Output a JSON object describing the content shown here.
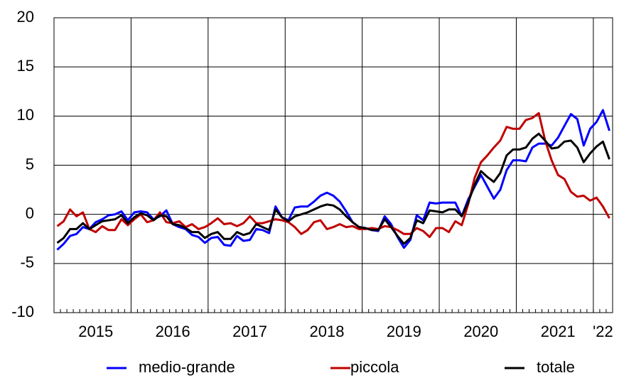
{
  "chart_data": {
    "type": "line",
    "categories": [
      null,
      null,
      null,
      null,
      null,
      null,
      "2015",
      null,
      null,
      null,
      null,
      null,
      null,
      null,
      null,
      null,
      null,
      null,
      "2016",
      null,
      null,
      null,
      null,
      null,
      null,
      null,
      null,
      null,
      null,
      null,
      "2017",
      null,
      null,
      null,
      null,
      null,
      null,
      null,
      null,
      null,
      null,
      null,
      "2018",
      null,
      null,
      null,
      null,
      null,
      null,
      null,
      null,
      null,
      null,
      null,
      "2019",
      null,
      null,
      null,
      null,
      null,
      null,
      null,
      null,
      null,
      null,
      null,
      "2020",
      null,
      null,
      null,
      null,
      null,
      null,
      null,
      null,
      null,
      null,
      null,
      "2021",
      null,
      null,
      null,
      null,
      null,
      null,
      "'22",
      null
    ],
    "series": [
      {
        "name": "medio-grande",
        "color": "#0000ff",
        "values": [
          -3.6,
          -3.0,
          -2.2,
          -2.0,
          -1.3,
          -1.5,
          -0.8,
          -0.5,
          -0.1,
          0.0,
          0.3,
          -0.6,
          0.2,
          0.3,
          0.2,
          -0.5,
          -0.2,
          0.4,
          -1.0,
          -1.3,
          -1.5,
          -2.1,
          -2.3,
          -2.9,
          -2.4,
          -2.3,
          -3.1,
          -3.2,
          -2.2,
          -2.7,
          -2.6,
          -1.5,
          -1.6,
          -1.9,
          0.8,
          -0.3,
          -0.6,
          0.7,
          0.8,
          0.8,
          1.3,
          1.9,
          2.2,
          1.9,
          1.3,
          0.3,
          -0.8,
          -1.3,
          -1.4,
          -1.6,
          -1.7,
          -0.2,
          -1.0,
          -2.3,
          -3.4,
          -2.6,
          -0.1,
          -0.6,
          1.2,
          1.1,
          1.2,
          1.2,
          1.2,
          -0.2,
          1.5,
          2.8,
          4.0,
          2.8,
          1.6,
          2.5,
          4.5,
          5.5,
          5.5,
          5.4,
          6.8,
          7.2,
          7.2,
          7.0,
          7.8,
          9.0,
          10.2,
          9.7,
          7.0,
          8.7,
          9.4,
          10.6,
          8.5
        ]
      },
      {
        "name": "piccola",
        "color": "#c00000",
        "values": [
          -1.2,
          -0.7,
          0.5,
          -0.2,
          0.2,
          -1.5,
          -1.8,
          -1.2,
          -1.6,
          -1.6,
          -0.5,
          -1.1,
          -0.5,
          0.0,
          -0.8,
          -0.6,
          0.2,
          -0.8,
          -0.9,
          -0.7,
          -1.3,
          -1.0,
          -1.5,
          -1.3,
          -0.9,
          -0.4,
          -1.0,
          -0.9,
          -1.2,
          -0.9,
          -0.2,
          -0.9,
          -0.9,
          -0.7,
          -0.5,
          -0.6,
          -0.8,
          -1.3,
          -2.0,
          -1.6,
          -0.8,
          -0.6,
          -1.5,
          -1.3,
          -1.0,
          -1.3,
          -1.2,
          -1.5,
          -1.5,
          -1.4,
          -1.5,
          -1.2,
          -1.3,
          -1.6,
          -2.0,
          -2.0,
          -1.4,
          -1.7,
          -2.3,
          -1.4,
          -1.4,
          -1.8,
          -0.7,
          -1.1,
          1.0,
          3.7,
          5.3,
          6.0,
          6.8,
          7.5,
          8.9,
          8.7,
          8.7,
          9.6,
          9.8,
          10.3,
          7.5,
          5.5,
          4.0,
          3.6,
          2.3,
          1.8,
          1.9,
          1.4,
          1.7,
          0.8,
          -0.4
        ]
      },
      {
        "name": "totale",
        "color": "#000000",
        "values": [
          -2.9,
          -2.4,
          -1.5,
          -1.5,
          -0.9,
          -1.5,
          -1.1,
          -0.7,
          -0.6,
          -0.5,
          -0.1,
          -0.9,
          -0.3,
          0.1,
          -0.1,
          -0.6,
          -0.1,
          -0.2,
          -1.0,
          -1.1,
          -1.4,
          -1.8,
          -1.8,
          -2.4,
          -2.0,
          -1.8,
          -2.5,
          -2.5,
          -1.8,
          -2.1,
          -1.9,
          -1.0,
          -1.3,
          -1.6,
          0.5,
          -0.3,
          -0.7,
          -0.2,
          0.0,
          0.2,
          0.5,
          0.8,
          1.0,
          0.9,
          0.5,
          -0.2,
          -0.8,
          -1.3,
          -1.4,
          -1.6,
          -1.6,
          -0.5,
          -1.3,
          -2.2,
          -3.0,
          -2.4,
          -0.6,
          -0.9,
          0.4,
          0.3,
          0.2,
          0.5,
          0.5,
          -0.2,
          1.2,
          3.0,
          4.4,
          3.8,
          3.3,
          4.2,
          6.0,
          6.6,
          6.6,
          6.8,
          7.7,
          8.2,
          7.5,
          6.7,
          6.8,
          7.4,
          7.5,
          6.8,
          5.3,
          6.2,
          6.9,
          7.4,
          5.6
        ]
      }
    ],
    "ylim": [
      -10,
      20
    ],
    "yticks": [
      -10,
      -5,
      0,
      5,
      10,
      15,
      20
    ],
    "grid": true,
    "legend": "bottom"
  }
}
